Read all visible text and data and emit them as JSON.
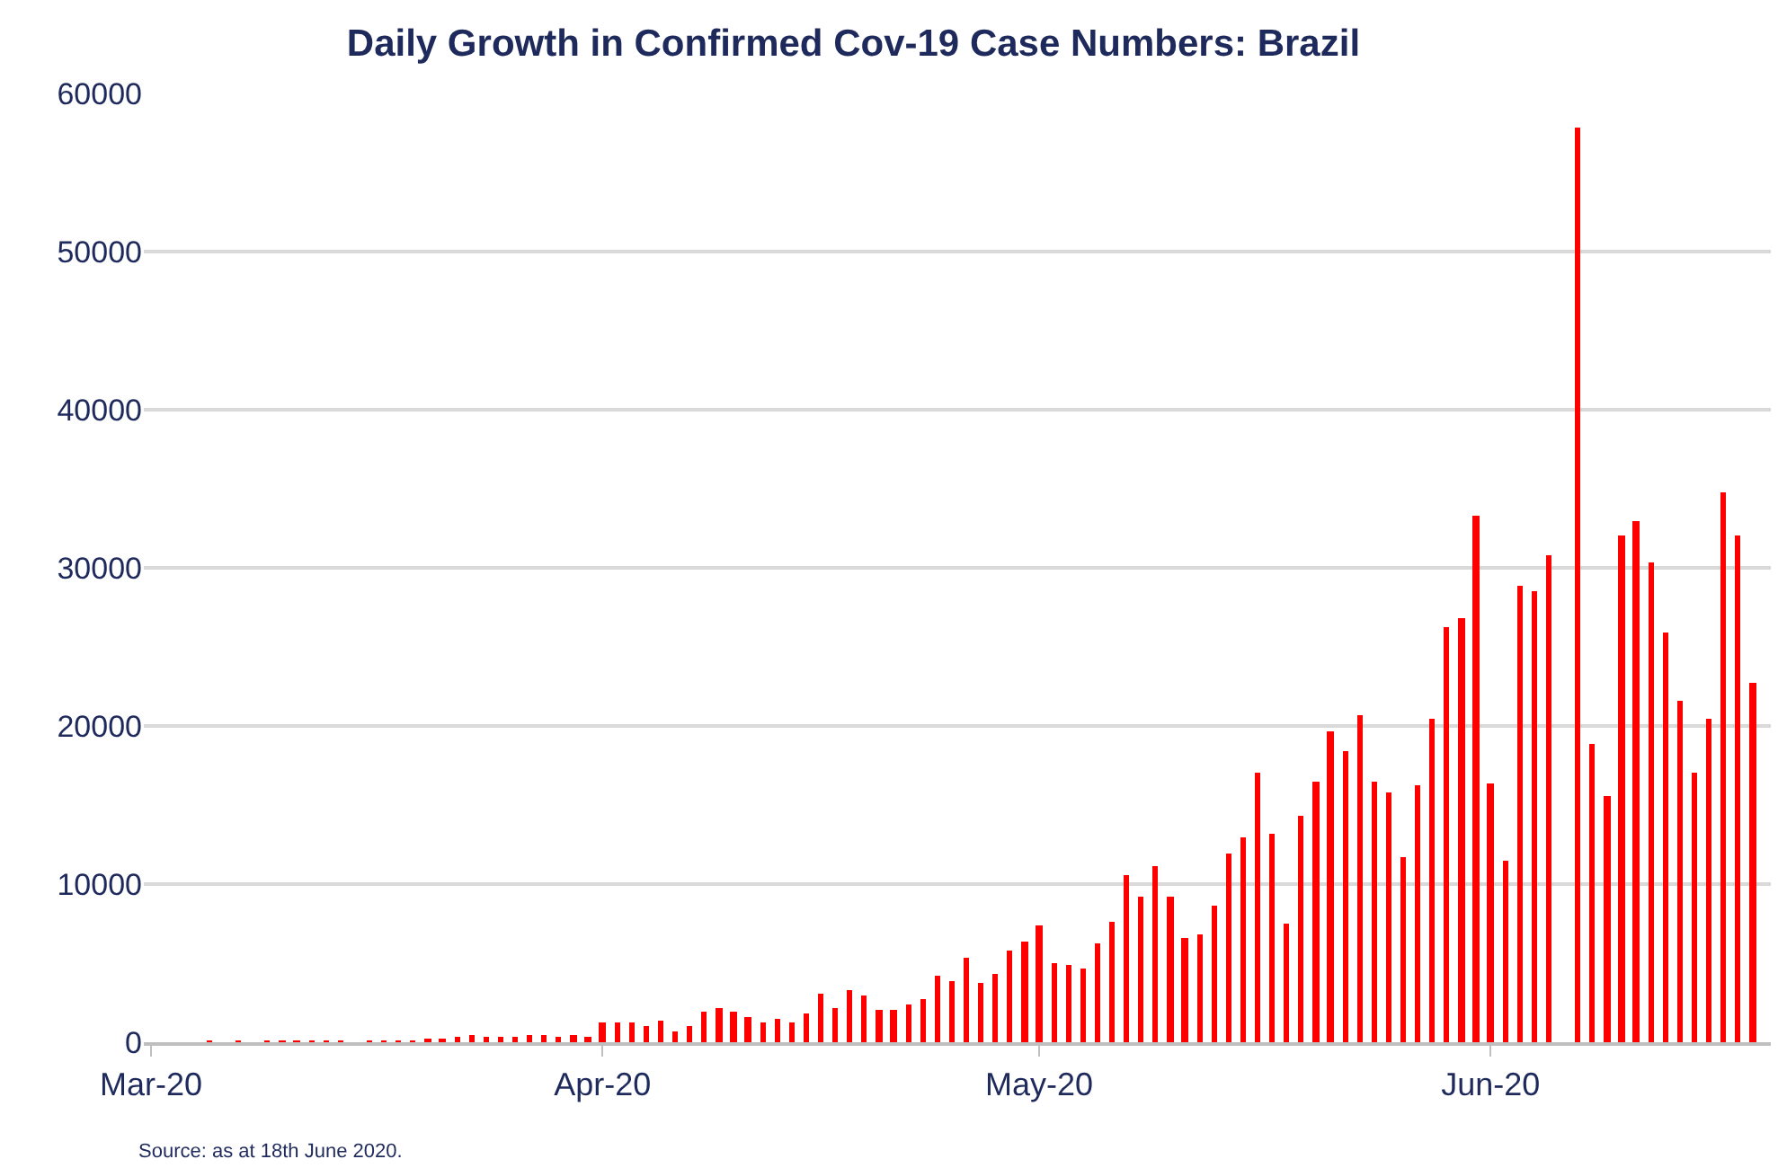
{
  "chart_data": {
    "type": "bar",
    "title": "Daily Growth in Confirmed Cov-19 Case Numbers: Brazil",
    "annotations": [
      "Source: as at 18th June 2020."
    ],
    "x": [
      "2020-03-05",
      "2020-03-06",
      "2020-03-07",
      "2020-03-08",
      "2020-03-09",
      "2020-03-10",
      "2020-03-11",
      "2020-03-12",
      "2020-03-13",
      "2020-03-14",
      "2020-03-15",
      "2020-03-16",
      "2020-03-17",
      "2020-03-18",
      "2020-03-19",
      "2020-03-20",
      "2020-03-21",
      "2020-03-22",
      "2020-03-23",
      "2020-03-24",
      "2020-03-25",
      "2020-03-26",
      "2020-03-27",
      "2020-03-28",
      "2020-03-29",
      "2020-03-30",
      "2020-03-31",
      "2020-04-01",
      "2020-04-02",
      "2020-04-03",
      "2020-04-04",
      "2020-04-05",
      "2020-04-06",
      "2020-04-07",
      "2020-04-08",
      "2020-04-09",
      "2020-04-10",
      "2020-04-11",
      "2020-04-12",
      "2020-04-13",
      "2020-04-14",
      "2020-04-15",
      "2020-04-16",
      "2020-04-17",
      "2020-04-18",
      "2020-04-19",
      "2020-04-20",
      "2020-04-21",
      "2020-04-22",
      "2020-04-23",
      "2020-04-24",
      "2020-04-25",
      "2020-04-26",
      "2020-04-27",
      "2020-04-28",
      "2020-04-29",
      "2020-04-30",
      "2020-05-01",
      "2020-05-02",
      "2020-05-03",
      "2020-05-04",
      "2020-05-05",
      "2020-05-06",
      "2020-05-07",
      "2020-05-08",
      "2020-05-09",
      "2020-05-10",
      "2020-05-11",
      "2020-05-12",
      "2020-05-13",
      "2020-05-14",
      "2020-05-15",
      "2020-05-16",
      "2020-05-17",
      "2020-05-18",
      "2020-05-19",
      "2020-05-20",
      "2020-05-21",
      "2020-05-22",
      "2020-05-23",
      "2020-05-24",
      "2020-05-25",
      "2020-05-26",
      "2020-05-27",
      "2020-05-28",
      "2020-05-29",
      "2020-05-30",
      "2020-05-31",
      "2020-06-01",
      "2020-06-02",
      "2020-06-03",
      "2020-06-04",
      "2020-06-05",
      "2020-06-06",
      "2020-06-07",
      "2020-06-08",
      "2020-06-09",
      "2020-06-10",
      "2020-06-11",
      "2020-06-12",
      "2020-06-13",
      "2020-06-14",
      "2020-06-15",
      "2020-06-16",
      "2020-06-17",
      "2020-06-18",
      "2020-06-19"
    ],
    "values": [
      100,
      null,
      100,
      null,
      100,
      100,
      100,
      100,
      100,
      100,
      null,
      100,
      100,
      100,
      100,
      200,
      200,
      300,
      500,
      300,
      300,
      300,
      400,
      500,
      300,
      500,
      300,
      1200,
      1200,
      1300,
      1000,
      1400,
      700,
      1000,
      1900,
      2200,
      1900,
      1600,
      1200,
      1500,
      1200,
      1800,
      3100,
      2200,
      3300,
      3000,
      2100,
      2100,
      2400,
      2700,
      4200,
      3900,
      5300,
      3700,
      4300,
      5800,
      6400,
      7400,
      5000,
      4900,
      4700,
      6300,
      7600,
      10600,
      9200,
      11100,
      9200,
      6600,
      6800,
      8600,
      11900,
      13000,
      17100,
      13200,
      7500,
      14300,
      16500,
      19700,
      18400,
      20700,
      16500,
      15800,
      11700,
      16300,
      20500,
      26300,
      26800,
      33300,
      16400,
      11500,
      28900,
      28500,
      30800,
      null,
      57800,
      18900,
      15600,
      32000,
      32900,
      30300,
      25900,
      21600,
      17100,
      20500,
      34800,
      32000,
      22700
    ],
    "color": "#ff0000",
    "xlim": [
      "2020-02-29T12:00",
      "2020-06-20T06:00"
    ],
    "xticks": [
      {
        "value": "2020-03-01",
        "label": "Mar-20"
      },
      {
        "value": "2020-04-01",
        "label": "Apr-20"
      },
      {
        "value": "2020-05-01",
        "label": "May-20"
      },
      {
        "value": "2020-06-01",
        "label": "Jun-20"
      }
    ],
    "ylim": [
      0,
      60000
    ],
    "yticks": [
      0,
      10000,
      20000,
      30000,
      40000,
      50000,
      60000
    ],
    "grid": "y"
  }
}
